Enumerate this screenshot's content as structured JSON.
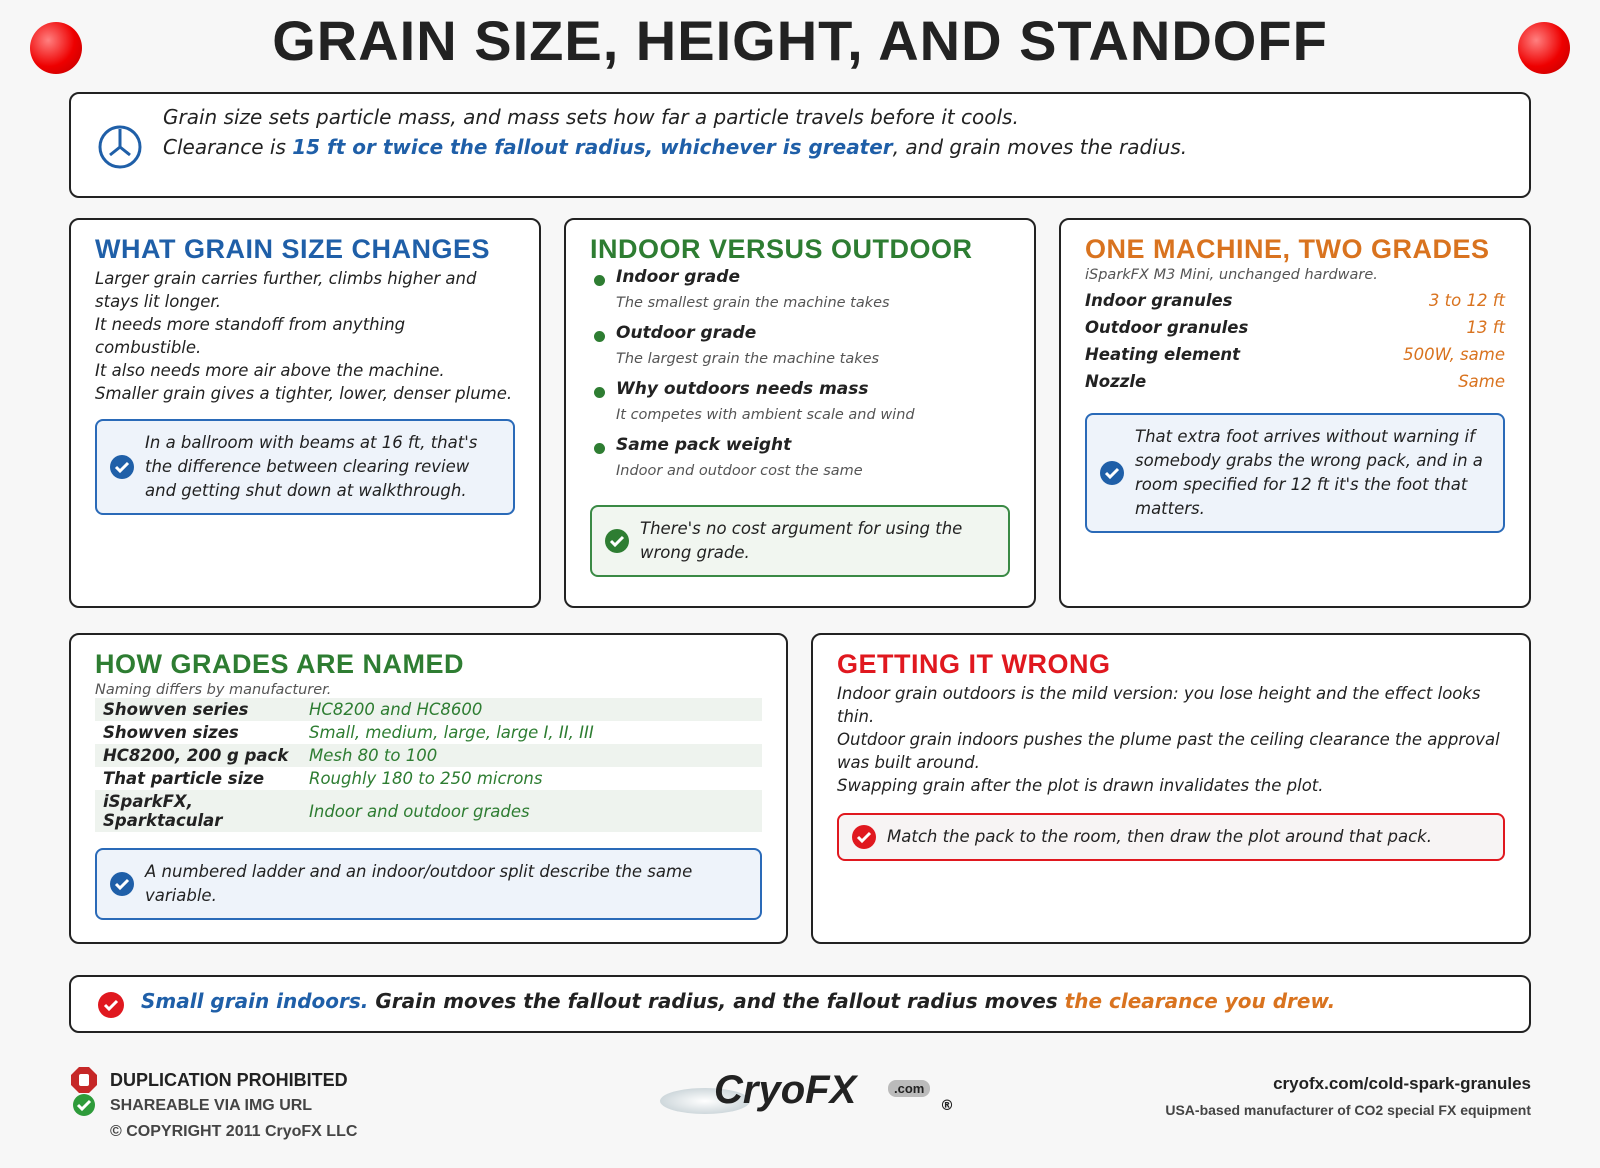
{
  "header": {
    "title": "GRAIN SIZE, HEIGHT, AND STANDOFF"
  },
  "intro": {
    "line1": "Grain size sets particle mass, and mass sets how far a particle travels before it cools.",
    "line2_start": "Clearance is",
    "line2_highlight": "15 ft or twice the fallout radius, whichever is greater",
    "line2_end": ", and grain moves the radius."
  },
  "grain_size": {
    "title": "WHAT GRAIN SIZE CHANGES",
    "paragraphs": [
      "Larger grain carries further, climbs higher and stays lit longer.",
      "It needs more standoff from anything combustible.",
      "It also needs more air above the machine.",
      "Smaller grain gives a tighter, lower, denser plume."
    ],
    "note": "In a ballroom with beams at 16 ft, that's the difference between clearing review and getting shut down at walkthrough."
  },
  "indoor_outdoor": {
    "title": "INDOOR VERSUS OUTDOOR",
    "items": [
      {
        "label": "Indoor grade",
        "detail": "The smallest grain the machine takes"
      },
      {
        "label": "Outdoor grade",
        "detail": "The largest grain the machine takes"
      },
      {
        "label": "Why outdoors needs mass",
        "detail": "It competes with ambient scale and wind"
      },
      {
        "label": "Same pack weight",
        "detail": "Indoor and outdoor cost the same"
      }
    ],
    "note": "There's no cost argument for using the wrong grade."
  },
  "grades": {
    "title": "ONE MACHINE, TWO GRADES",
    "subtitle": "iSparkFX M3 Mini, unchanged hardware.",
    "rows": [
      [
        "Indoor granules",
        "3 to 12 ft"
      ],
      [
        "Outdoor granules",
        "13 ft"
      ],
      [
        "Heating element",
        "500W, same"
      ],
      [
        "Nozzle",
        "Same"
      ]
    ],
    "note": "That extra foot arrives without warning if somebody grabs the wrong pack, and in a room specified for 12 ft it's the foot that matters."
  },
  "naming": {
    "title": "HOW GRADES ARE NAMED",
    "subtitle": "Naming differs by manufacturer.",
    "rows": [
      [
        "Showven series",
        "HC8200 and HC8600"
      ],
      [
        "Showven sizes",
        "Small, medium, large, large I, II, III"
      ],
      [
        "HC8200, 200 g pack",
        "Mesh 80 to 100"
      ],
      [
        "That particle size",
        "Roughly 180 to 250 microns"
      ],
      [
        "iSparkFX, Sparktacular",
        "Indoor and outdoor grades"
      ]
    ],
    "note": "A numbered ladder and an indoor/outdoor split describe the same variable."
  },
  "wrong": {
    "title": "GETTING IT WRONG",
    "paragraphs": [
      "Indoor grain outdoors is the mild version: you lose height and the effect looks thin.",
      "Outdoor grain indoors pushes the plume past the ceiling clearance the approval was built around.",
      "Swapping grain after the plot is drawn invalidates the plot."
    ],
    "note": "Match the pack to the room, then draw the plot around that pack."
  },
  "banner": {
    "highlight": "Small grain indoors.",
    "middle": "Grain moves the fallout radius, and the fallout radius moves",
    "end": "the clearance you drew."
  },
  "footer": {
    "notices": [
      "DUPLICATION PROHIBITED",
      "SHAREABLE VIA IMG URL",
      "© COPYRIGHT 2011 CryoFX LLC"
    ],
    "logo": "CryoFX",
    "logo_suffix": ".com",
    "logo_mark": "®",
    "url": "cryofx.com/cold-spark-granules",
    "tagline": "USA-based manufacturer of CO2 special FX equipment"
  }
}
